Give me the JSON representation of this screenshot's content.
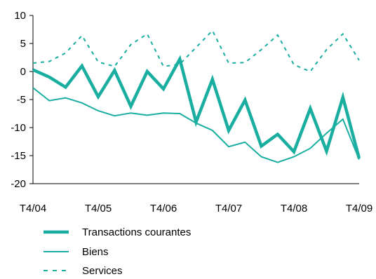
{
  "chart_data": {
    "type": "line",
    "title": "",
    "xlabel": "",
    "ylabel": "",
    "ylim": [
      -20,
      10
    ],
    "yticks": [
      -20,
      -15,
      -10,
      -5,
      0,
      5,
      10
    ],
    "x_tick_labels": [
      "T4/04",
      "T4/05",
      "T4/06",
      "T4/07",
      "T4/08",
      "T4/09"
    ],
    "x_tick_index": [
      0,
      4,
      8,
      12,
      16,
      20
    ],
    "grid": "none",
    "legend_position": "bottom",
    "colors": {
      "teal": "#1aaea1",
      "axis": "#000000"
    },
    "series": [
      {
        "name": "Transactions courantes",
        "style": "thick",
        "values": [
          0.3,
          -1.0,
          -2.8,
          1.0,
          -4.5,
          0.2,
          -6.2,
          0.0,
          -3.1,
          2.2,
          -9.0,
          -1.4,
          -10.5,
          -5.1,
          -13.3,
          -11.2,
          -14.3,
          -6.6,
          -14.2,
          -4.6,
          -15.5
        ]
      },
      {
        "name": "Biens",
        "style": "thin",
        "values": [
          -2.9,
          -5.2,
          -4.7,
          -5.6,
          -7.0,
          -7.9,
          -7.4,
          -7.8,
          -7.4,
          -7.5,
          -9.2,
          -10.5,
          -13.4,
          -12.6,
          -15.2,
          -16.2,
          -15.2,
          -13.7,
          -11.0,
          -8.5,
          -15.7
        ]
      },
      {
        "name": "Services",
        "style": "dashed",
        "values": [
          1.5,
          1.8,
          3.3,
          6.4,
          1.7,
          0.9,
          4.8,
          6.7,
          0.9,
          1.3,
          4.3,
          7.3,
          1.5,
          1.6,
          3.9,
          6.5,
          1.2,
          0.0,
          3.9,
          6.7,
          2.0
        ]
      }
    ]
  }
}
